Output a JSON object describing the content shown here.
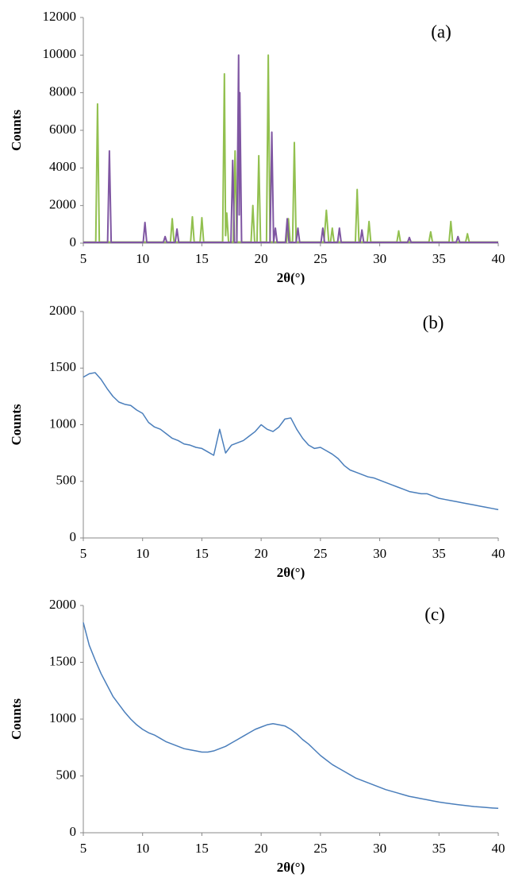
{
  "chart_data": [
    {
      "type": "line",
      "annotation": "(a)",
      "ylabel": "Counts",
      "xlabel": "2θ(°)",
      "xlim": [
        5,
        40
      ],
      "xticks": [
        5,
        10,
        15,
        20,
        25,
        30,
        35,
        40
      ],
      "ylim": [
        0,
        12000
      ],
      "yticks": [
        0,
        2000,
        4000,
        6000,
        8000,
        10000,
        12000
      ],
      "series": [
        {
          "color": "#92c04f",
          "x": [
            5,
            6.05,
            6.2,
            6.35,
            12.35,
            12.5,
            12.65,
            14.05,
            14.2,
            14.35,
            14.85,
            15.0,
            15.15,
            16.75,
            16.9,
            17.0,
            17.1,
            17.25,
            17.65,
            17.8,
            17.95,
            19.15,
            19.3,
            19.45,
            19.65,
            19.8,
            19.95,
            20.45,
            20.6,
            20.75,
            22.15,
            22.3,
            22.45,
            22.65,
            22.8,
            22.95,
            25.3,
            25.5,
            25.7,
            25.85,
            26.0,
            26.15,
            27.95,
            28.1,
            28.25,
            28.95,
            29.1,
            29.25,
            31.45,
            31.6,
            31.75,
            34.15,
            34.3,
            34.45,
            35.85,
            36.0,
            36.15,
            37.25,
            37.4,
            37.55,
            40
          ],
          "values": [
            60,
            60,
            7400,
            60,
            60,
            1300,
            60,
            60,
            1400,
            60,
            60,
            1350,
            60,
            60,
            9000,
            400,
            1600,
            60,
            60,
            4900,
            60,
            60,
            2000,
            60,
            60,
            4650,
            60,
            60,
            10000,
            60,
            60,
            1300,
            60,
            60,
            5350,
            60,
            60,
            1750,
            60,
            60,
            800,
            60,
            60,
            2850,
            60,
            60,
            1150,
            60,
            60,
            650,
            60,
            60,
            600,
            60,
            60,
            1150,
            60,
            60,
            500,
            60,
            60
          ]
        },
        {
          "color": "#7f56a2",
          "x": [
            5,
            7.05,
            7.2,
            7.35,
            10.05,
            10.2,
            10.35,
            11.75,
            11.9,
            12.05,
            12.75,
            12.9,
            13.05,
            17.45,
            17.6,
            17.75,
            17.95,
            18.1,
            18.15,
            18.2,
            18.35,
            20.75,
            20.9,
            21.05,
            21.2,
            21.35,
            22.05,
            22.2,
            22.35,
            22.95,
            23.1,
            23.25,
            25.05,
            25.2,
            25.35,
            26.45,
            26.6,
            26.75,
            28.35,
            28.5,
            28.65,
            32.35,
            32.5,
            32.65,
            36.45,
            36.6,
            36.75,
            40
          ],
          "values": [
            40,
            40,
            4900,
            40,
            40,
            1100,
            40,
            40,
            350,
            40,
            40,
            750,
            40,
            40,
            4400,
            40,
            40,
            10000,
            1500,
            8000,
            40,
            40,
            5900,
            40,
            800,
            40,
            40,
            1300,
            40,
            40,
            800,
            40,
            40,
            800,
            40,
            40,
            800,
            40,
            40,
            700,
            40,
            40,
            300,
            40,
            40,
            350,
            40,
            40
          ]
        }
      ]
    },
    {
      "type": "line",
      "annotation": "(b)",
      "ylabel": "Counts",
      "xlabel": "2θ(°)",
      "xlim": [
        5,
        40
      ],
      "xticks": [
        5,
        10,
        15,
        20,
        25,
        30,
        35,
        40
      ],
      "ylim": [
        0,
        2000
      ],
      "yticks": [
        0,
        500,
        1000,
        1500,
        2000
      ],
      "x": [
        5,
        5.5,
        6,
        6.5,
        7,
        7.5,
        8,
        8.5,
        9,
        9.5,
        10,
        10.5,
        11,
        11.5,
        12,
        12.5,
        13,
        13.5,
        14,
        14.5,
        15,
        15.5,
        16,
        16.5,
        17,
        17.5,
        18,
        18.5,
        19,
        19.5,
        20,
        20.5,
        21,
        21.5,
        22,
        22.5,
        23,
        23.5,
        24,
        24.5,
        25,
        25.5,
        26,
        26.5,
        27,
        27.5,
        28,
        28.5,
        29,
        29.5,
        30,
        30.5,
        31,
        31.5,
        32,
        32.5,
        33,
        33.5,
        34,
        34.5,
        35,
        35.5,
        36,
        36.5,
        37,
        37.5,
        38,
        38.5,
        39,
        39.5,
        40
      ],
      "series": [
        {
          "color": "#4a7ebb",
          "values": [
            1420,
            1450,
            1460,
            1400,
            1320,
            1250,
            1200,
            1180,
            1170,
            1130,
            1100,
            1020,
            980,
            960,
            920,
            880,
            860,
            830,
            820,
            800,
            790,
            760,
            730,
            960,
            750,
            820,
            840,
            860,
            900,
            940,
            1000,
            960,
            940,
            980,
            1050,
            1060,
            960,
            880,
            820,
            790,
            800,
            770,
            740,
            700,
            640,
            600,
            580,
            560,
            540,
            530,
            510,
            490,
            470,
            450,
            430,
            410,
            400,
            390,
            390,
            370,
            350,
            340,
            330,
            320,
            310,
            300,
            290,
            280,
            270,
            260,
            250
          ]
        }
      ]
    },
    {
      "type": "line",
      "annotation": "(c)",
      "ylabel": "Counts",
      "xlabel": "2θ(°)",
      "xlim": [
        5,
        40
      ],
      "xticks": [
        5,
        10,
        15,
        20,
        25,
        30,
        35,
        40
      ],
      "ylim": [
        0,
        2000
      ],
      "yticks": [
        0,
        500,
        1000,
        1500,
        2000
      ],
      "x": [
        5,
        5.5,
        6,
        6.5,
        7,
        7.5,
        8,
        8.5,
        9,
        9.5,
        10,
        10.5,
        11,
        11.5,
        12,
        12.5,
        13,
        13.5,
        14,
        14.5,
        15,
        15.5,
        16,
        16.5,
        17,
        17.5,
        18,
        18.5,
        19,
        19.5,
        20,
        20.5,
        21,
        21.5,
        22,
        22.5,
        23,
        23.5,
        24,
        24.5,
        25,
        25.5,
        26,
        26.5,
        27,
        27.5,
        28,
        28.5,
        29,
        29.5,
        30,
        30.5,
        31,
        31.5,
        32,
        32.5,
        33,
        33.5,
        34,
        34.5,
        35,
        35.5,
        36,
        36.5,
        37,
        37.5,
        38,
        38.5,
        39,
        39.5,
        40
      ],
      "series": [
        {
          "color": "#4a7ebb",
          "values": [
            1850,
            1650,
            1520,
            1400,
            1300,
            1200,
            1130,
            1060,
            1000,
            950,
            910,
            880,
            860,
            830,
            800,
            780,
            760,
            740,
            730,
            720,
            710,
            710,
            720,
            740,
            760,
            790,
            820,
            850,
            880,
            910,
            930,
            950,
            960,
            950,
            940,
            910,
            870,
            820,
            780,
            730,
            680,
            640,
            600,
            570,
            540,
            510,
            480,
            460,
            440,
            420,
            400,
            380,
            365,
            350,
            335,
            320,
            310,
            300,
            290,
            280,
            270,
            262,
            255,
            248,
            242,
            236,
            230,
            226,
            222,
            218,
            215
          ]
        }
      ]
    }
  ]
}
